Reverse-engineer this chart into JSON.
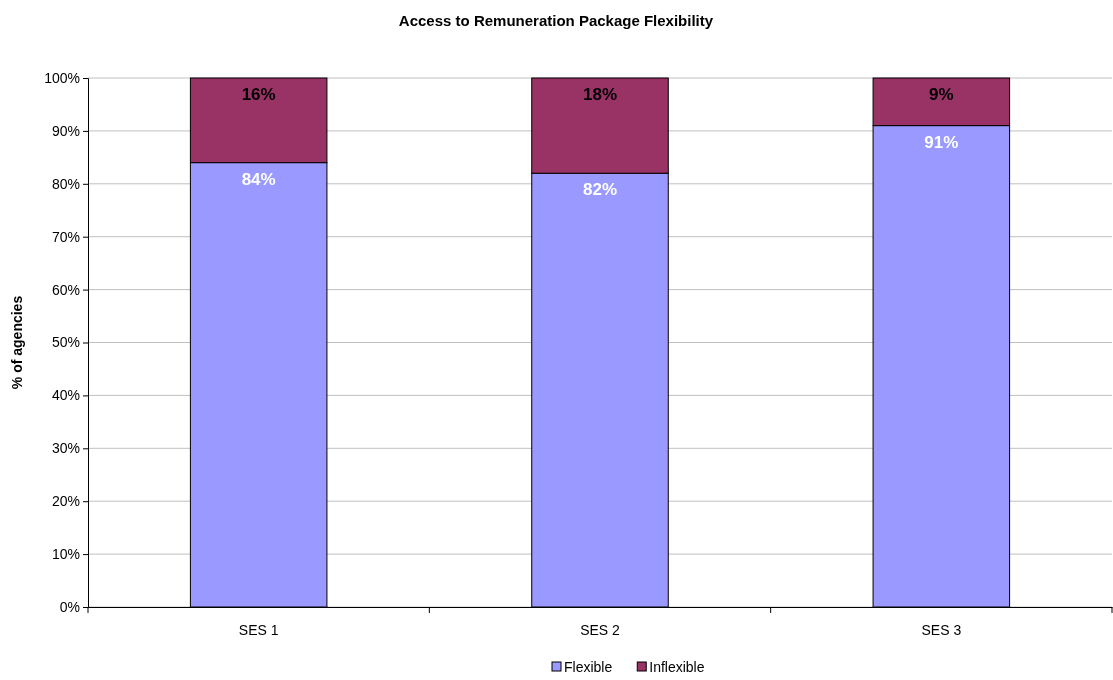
{
  "chart_data": {
    "type": "bar",
    "title": "Access to Remuneration Package Flexibility",
    "ylabel": "% of agencies",
    "categories": [
      "SES 1",
      "SES 2",
      "SES 3"
    ],
    "stacked": true,
    "series": [
      {
        "name": "Flexible",
        "color": "#9999ff",
        "values": [
          84,
          82,
          91
        ],
        "value_labels": [
          "84%",
          "82%",
          "91%"
        ]
      },
      {
        "name": "Inflexible",
        "color": "#993366",
        "values": [
          16,
          18,
          9
        ],
        "value_labels": [
          "16%",
          "18%",
          "9%"
        ]
      }
    ],
    "ylim": [
      0,
      100
    ],
    "yticks": [
      {
        "value": 0,
        "label": "0%"
      },
      {
        "value": 10,
        "label": "10%"
      },
      {
        "value": 20,
        "label": "20%"
      },
      {
        "value": 30,
        "label": "30%"
      },
      {
        "value": 40,
        "label": "40%"
      },
      {
        "value": 50,
        "label": "50%"
      },
      {
        "value": 60,
        "label": "60%"
      },
      {
        "value": 70,
        "label": "70%"
      },
      {
        "value": 80,
        "label": "80%"
      },
      {
        "value": 90,
        "label": "90%"
      },
      {
        "value": 100,
        "label": "100%"
      }
    ],
    "grid": "y",
    "legend": "bottom"
  }
}
